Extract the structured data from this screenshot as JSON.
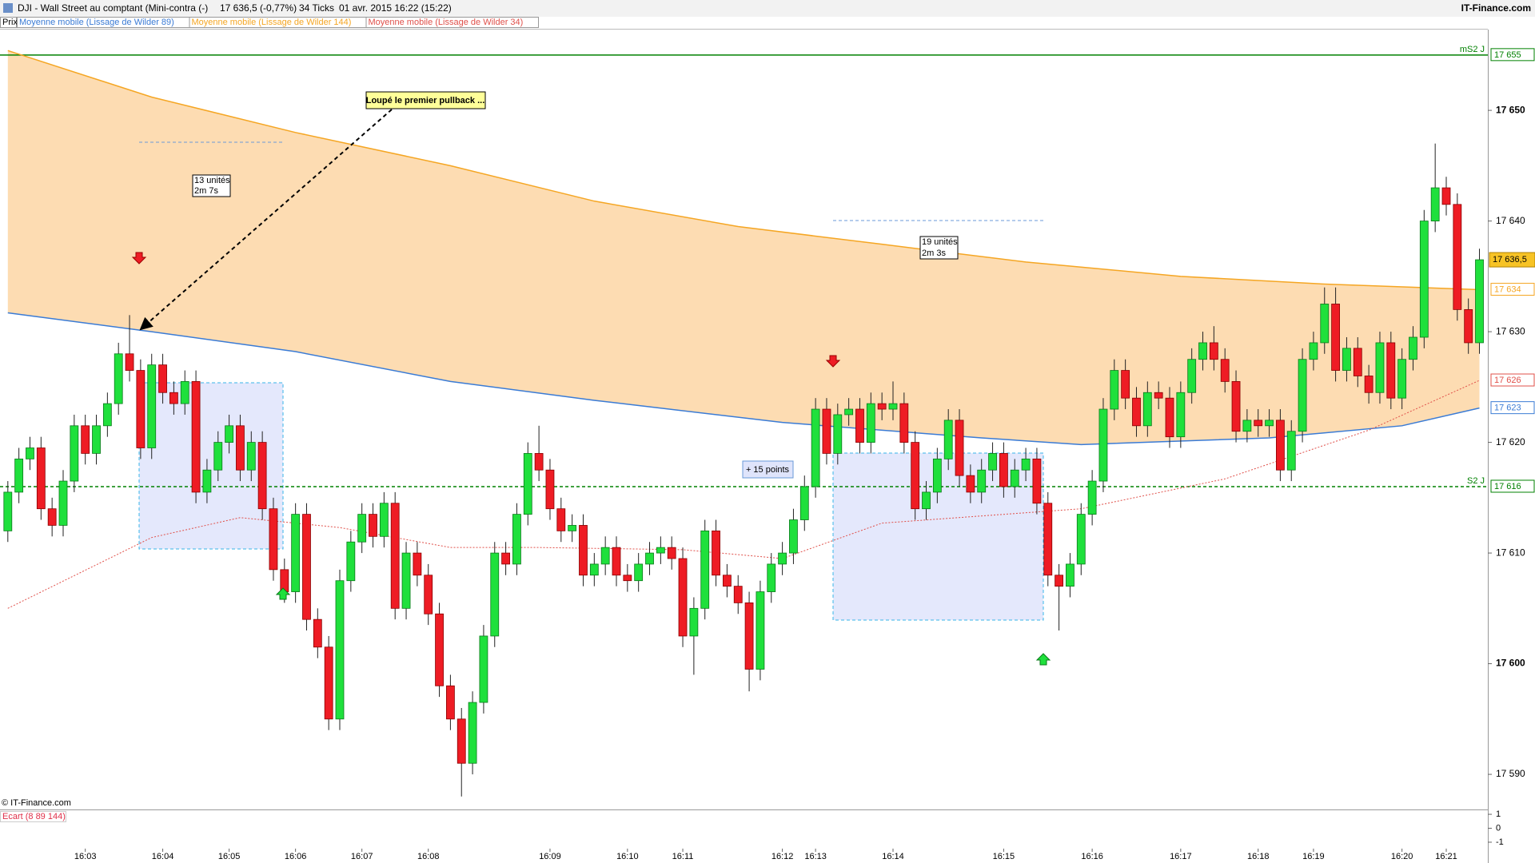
{
  "header": {
    "symbol": "DJI - Wall Street au comptant (Mini-contra (-)",
    "quote": "17 636,5 (-0,77%)",
    "ticks": "34 Ticks",
    "date": "01 avr. 2015 16:22 (15:22)",
    "brand": "IT-Finance.com"
  },
  "chart_data": {
    "type": "candlestick",
    "legend_price": "Prix",
    "categories": [
      null,
      null,
      null,
      null,
      null,
      null,
      null,
      "16:03",
      null,
      null,
      null,
      null,
      null,
      null,
      "16:04",
      null,
      null,
      null,
      null,
      null,
      "16:05",
      null,
      null,
      null,
      null,
      null,
      "16:06",
      null,
      null,
      null,
      null,
      null,
      "16:07",
      null,
      null,
      null,
      null,
      null,
      "16:08",
      null,
      null,
      null,
      null,
      null,
      null,
      null,
      null,
      null,
      null,
      "16:09",
      null,
      null,
      null,
      null,
      null,
      null,
      "16:10",
      null,
      null,
      null,
      null,
      "16:11",
      null,
      null,
      null,
      null,
      null,
      null,
      null,
      null,
      "16:12",
      null,
      null,
      "16:13",
      null,
      null,
      null,
      null,
      null,
      null,
      "16:14",
      null,
      null,
      null,
      null,
      null,
      null,
      null,
      null,
      null,
      "16:15",
      null,
      null,
      null,
      null,
      null,
      null,
      null,
      "16:16",
      null,
      null,
      null,
      null,
      null,
      null,
      null,
      "16:17",
      null,
      null,
      null,
      null,
      null,
      null,
      "16:18",
      null,
      null,
      null,
      null,
      "16:19",
      null,
      null,
      null,
      null,
      null,
      null,
      null,
      "16:20",
      null,
      null,
      null,
      "16:21",
      null,
      null,
      null
    ],
    "open": [
      17612,
      17615.5,
      17618.5,
      17619.5,
      17614,
      17612.5,
      17616.5,
      17621.5,
      17619,
      17621.5,
      17623.5,
      17628,
      17626.5,
      17619.5,
      17627,
      17624.5,
      17623.5,
      17625.5,
      17615.5,
      17617.5,
      17620,
      17621.5,
      17617.5,
      17620,
      17614,
      17608.5,
      17606.5,
      17613.5,
      17604,
      17601.5,
      17595,
      17607.5,
      17611,
      17613.5,
      17611.5,
      17614.5,
      17605,
      17610,
      17608,
      17604.5,
      17598,
      17595,
      17591,
      17596.5,
      17602.5,
      17610,
      17609,
      17613.5,
      17619,
      17617.5,
      17614,
      17612,
      17612.5,
      17608,
      17609,
      17610.5,
      17608,
      17607.5,
      17609,
      17610,
      17610.5,
      17609.5,
      17602.5,
      17605,
      17612,
      17608,
      17607,
      17605.5,
      17599.5,
      17606.5,
      17609,
      17610,
      17613,
      17616,
      17623,
      17619,
      17622.5,
      17623,
      17620,
      17623.5,
      17623,
      17623.5,
      17620,
      17614,
      17615.5,
      17618.5,
      17622,
      17617,
      17615.5,
      17617.5,
      17619,
      17616,
      17617.5,
      17618.5,
      17614.5,
      17608,
      17607,
      17609,
      17613.5,
      17616.5,
      17623,
      17626.5,
      17624,
      17621.5,
      17624.5,
      17624,
      17620.5,
      17624.5,
      17627.5,
      17629,
      17627.5,
      17625.5,
      17621,
      17622,
      17621.5,
      17622,
      17617.5,
      17621,
      17627.5,
      17629,
      17632.5,
      17626.5,
      17628.5,
      17626,
      17624.5,
      17629,
      17624,
      17627.5,
      17629.5,
      17640,
      17643,
      17641.5,
      17632,
      17629
    ],
    "high": [
      17616.5,
      17619.5,
      17620.5,
      17620.5,
      17615,
      17617.5,
      17622.5,
      17622.5,
      17622.5,
      17624.5,
      17629,
      17631.5,
      17627.5,
      17628,
      17628,
      17625.5,
      17626.5,
      17626.5,
      17618.5,
      17621,
      17622.5,
      17622.5,
      17621,
      17621,
      17615,
      17609.5,
      17614.5,
      17614.5,
      17605,
      17602.5,
      17608.5,
      17612,
      17614.5,
      17614.5,
      17615.5,
      17615.5,
      17611,
      17611,
      17609,
      17605.5,
      17599,
      17596,
      17597.5,
      17603.5,
      17611,
      17611,
      17614.5,
      17620,
      17621.5,
      17618.5,
      17615,
      17613.5,
      17613.5,
      17610,
      17611.5,
      17611.5,
      17609,
      17610,
      17611,
      17611.5,
      17611.5,
      17610.5,
      17606,
      17613,
      17613,
      17609,
      17608,
      17606.5,
      17607.5,
      17610,
      17611,
      17614,
      17617,
      17624,
      17624,
      17623.5,
      17624,
      17624,
      17624.5,
      17624.5,
      17625.5,
      17624.5,
      17621,
      17616.5,
      17619.5,
      17623,
      17623,
      17618,
      17618.5,
      17620,
      17620,
      17618.5,
      17619.5,
      17619.5,
      17615.5,
      17609,
      17610,
      17614.5,
      17617.5,
      17624,
      17627.5,
      17627.5,
      17625,
      17625.5,
      17625.5,
      17625,
      17625.5,
      17628.5,
      17630,
      17630.5,
      17628.5,
      17626.5,
      17623,
      17623,
      17623,
      17623,
      17622,
      17628.5,
      17630,
      17634,
      17634,
      17629.5,
      17629.5,
      17627,
      17630,
      17630,
      17628.5,
      17630.5,
      17641,
      17647,
      17644,
      17642.5,
      17633,
      17637.5
    ],
    "low": [
      17611,
      17614.5,
      17617.5,
      17613,
      17611.5,
      17611.5,
      17615.5,
      17618,
      17618,
      17620.5,
      17622.5,
      17625.5,
      17618.5,
      17618.5,
      17623.5,
      17622.5,
      17622.5,
      17614.5,
      17614.5,
      17616.5,
      17619,
      17616.5,
      17616.5,
      17613,
      17607.5,
      17605.5,
      17605.5,
      17603,
      17600.5,
      17594,
      17594,
      17606.5,
      17610,
      17610.5,
      17610.5,
      17604,
      17604,
      17607,
      17603.5,
      17597,
      17594,
      17588,
      17590,
      17595.5,
      17601.5,
      17608,
      17608,
      17612.5,
      17616.5,
      17613,
      17611,
      17611,
      17607,
      17607,
      17608,
      17607,
      17606.5,
      17606.5,
      17608,
      17609,
      17608.5,
      17601.5,
      17599,
      17604,
      17607,
      17606,
      17604.5,
      17597.5,
      17598.5,
      17605.5,
      17608,
      17609,
      17612,
      17615,
      17618,
      17618,
      17621.5,
      17619,
      17619,
      17622,
      17622,
      17619,
      17613,
      17613,
      17614.5,
      17617.5,
      17616,
      17614.5,
      17614.5,
      17616.5,
      17615,
      17615,
      17616.5,
      17613.5,
      17607,
      17603,
      17606,
      17608,
      17612.5,
      17615.5,
      17622,
      17623,
      17620.5,
      17620.5,
      17623,
      17619.5,
      17619.5,
      17623.5,
      17626.5,
      17626.5,
      17624.5,
      17620,
      17620,
      17620.5,
      17620.5,
      17616.5,
      17616.5,
      17620,
      17626.5,
      17628,
      17625.5,
      17625.5,
      17625,
      17623.5,
      17623.5,
      17623,
      17623,
      17626.5,
      17628.5,
      17639,
      17640.5,
      17631,
      17628,
      17628
    ],
    "close": [
      17615.5,
      17618.5,
      17619.5,
      17614,
      17612.5,
      17616.5,
      17621.5,
      17619,
      17621.5,
      17623.5,
      17628,
      17626.5,
      17619.5,
      17627,
      17624.5,
      17623.5,
      17625.5,
      17615.5,
      17617.5,
      17620,
      17621.5,
      17617.5,
      17620,
      17614,
      17608.5,
      17606.5,
      17613.5,
      17604,
      17601.5,
      17595,
      17607.5,
      17611,
      17613.5,
      17611.5,
      17614.5,
      17605,
      17610,
      17608,
      17604.5,
      17598,
      17595,
      17591,
      17596.5,
      17602.5,
      17610,
      17609,
      17613.5,
      17619,
      17617.5,
      17614,
      17612,
      17612.5,
      17608,
      17609,
      17610.5,
      17608,
      17607.5,
      17609,
      17610,
      17610.5,
      17609.5,
      17602.5,
      17605,
      17612,
      17608,
      17607,
      17605.5,
      17599.5,
      17606.5,
      17609,
      17610,
      17613,
      17616,
      17623,
      17619,
      17622.5,
      17623,
      17620,
      17623.5,
      17623,
      17623.5,
      17620,
      17614,
      17615.5,
      17618.5,
      17622,
      17617,
      17615.5,
      17617.5,
      17619,
      17616,
      17617.5,
      17618.5,
      17614.5,
      17608,
      17607,
      17609,
      17613.5,
      17616.5,
      17623,
      17626.5,
      17624,
      17621.5,
      17624.5,
      17624,
      17620.5,
      17624.5,
      17627.5,
      17629,
      17627.5,
      17625.5,
      17621,
      17622,
      17621.5,
      17622,
      17617.5,
      17621,
      17627.5,
      17629,
      17632.5,
      17626.5,
      17628.5,
      17626,
      17624.5,
      17629,
      17624,
      17627.5,
      17629.5,
      17640,
      17643,
      17641.5,
      17632,
      17629,
      17636.5
    ],
    "up_color": "#1fe03c",
    "down_color": "#ee1c24",
    "ylim": [
      17586.9,
      17657.3
    ],
    "yticks": [
      {
        "value": 17590,
        "label": "17 590"
      },
      {
        "value": 17600,
        "label": "17 600"
      },
      {
        "value": 17610,
        "label": "17 610"
      },
      {
        "value": 17620,
        "label": "17 620"
      },
      {
        "value": 17630,
        "label": "17 630"
      },
      {
        "value": 17640,
        "label": "17 640"
      },
      {
        "value": 17650,
        "label": "17 650"
      }
    ],
    "last_label": "17 636,5",
    "last_color": "#f7c325",
    "band_color": "#fddcb2",
    "series": [
      {
        "name": "Moyenne mobile (Lissage de Wilder 89)",
        "color": "#3a7bd5",
        "style": "solid",
        "x": [
          0,
          13,
          26,
          40,
          53,
          70,
          88,
          97,
          114,
          126,
          133
        ],
        "values": [
          17631.7,
          17630,
          17628.2,
          17625.5,
          17623.8,
          17621.8,
          17620.4,
          17619.8,
          17620.4,
          17621.5,
          17623.1
        ],
        "end_label": "17 623"
      },
      {
        "name": "Moyenne mobile (Lissage de Wilder 144)",
        "color": "#f5a623",
        "style": "solid",
        "x": [
          0,
          13,
          26,
          40,
          53,
          66,
          79,
          92,
          106,
          119,
          133
        ],
        "values": [
          17655.4,
          17651.2,
          17648,
          17645,
          17641.8,
          17639.5,
          17637.9,
          17636.3,
          17635,
          17634.3,
          17633.8
        ],
        "end_label": "17 634"
      },
      {
        "name": "Moyenne mobile (Lissage de Wilder 34)",
        "color": "#e0504a",
        "style": "dotted",
        "x": [
          0,
          13,
          21,
          30,
          40,
          48,
          61,
          70,
          79,
          97,
          110,
          123,
          133
        ],
        "values": [
          17605,
          17611.4,
          17613.2,
          17612.3,
          17610.5,
          17610.5,
          17610.3,
          17609.5,
          17612.7,
          17614,
          17616.7,
          17621.1,
          17625.6
        ],
        "end_label": "17 626"
      }
    ],
    "levels": [
      {
        "name": "mS2 J",
        "value": 17655,
        "label": "17 655",
        "color": "#008000",
        "style": "solid"
      },
      {
        "name": "S2 J",
        "value": 17616,
        "label": "17 616",
        "color": "#008000",
        "style": "dashed"
      }
    ],
    "callout": "Loupé le premier pullback ...",
    "boxes": [
      {
        "lines": [
          "13 unités",
          "2m 7s"
        ]
      },
      {
        "lines": [
          "19 unités",
          "2m 3s"
        ]
      }
    ],
    "points_label": "+ 15 points",
    "copyright": "© IT-Finance.com"
  },
  "ecart": {
    "title": "Ecart (8 89 144)",
    "ylim": [
      -1.46,
      1.29
    ],
    "yticks": [
      1,
      0,
      -1
    ]
  }
}
